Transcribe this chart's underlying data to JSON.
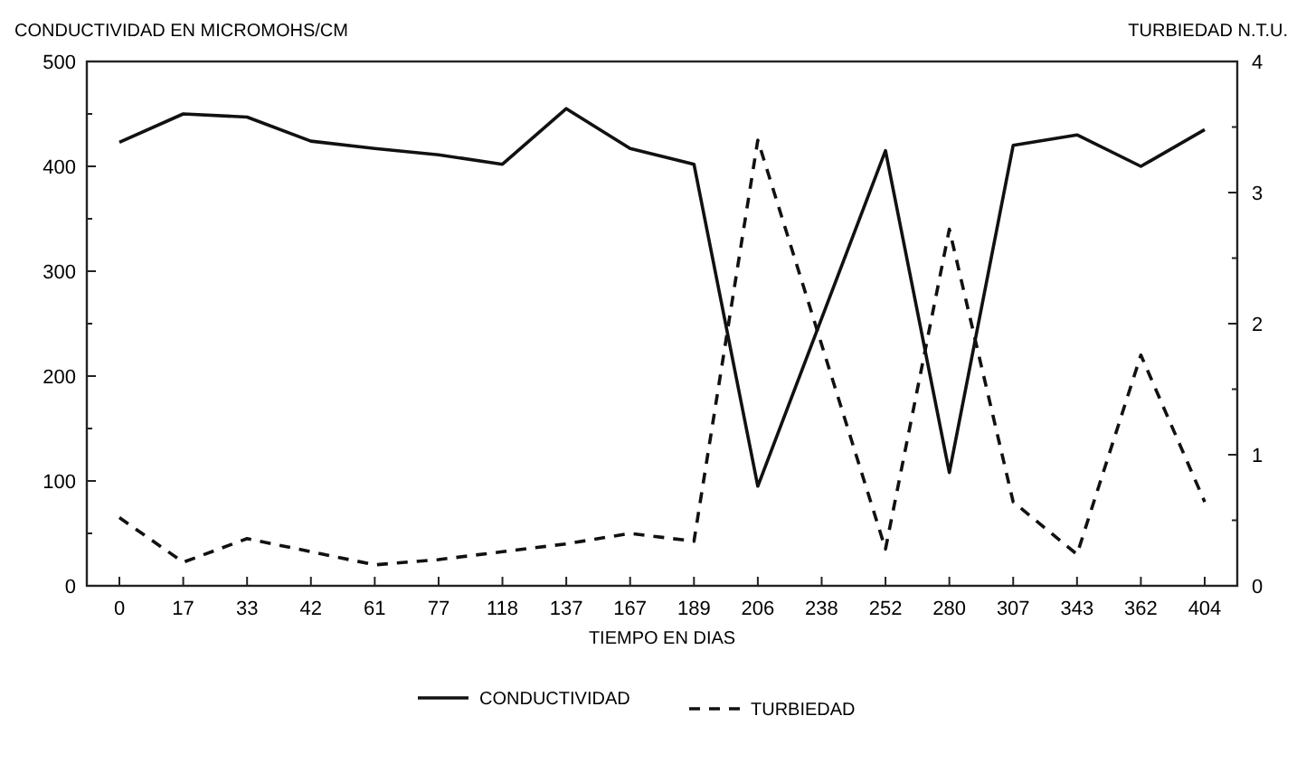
{
  "chart_data": {
    "type": "line",
    "ylabel": "CONDUCTIVIDAD EN MICROMOHS/CM",
    "y2label": "TURBIEDAD N.T.U.",
    "xlabel": "TIEMPO EN DIAS",
    "categories": [
      "0",
      "17",
      "33",
      "42",
      "61",
      "77",
      "118",
      "137",
      "167",
      "189",
      "206",
      "238",
      "252",
      "280",
      "307",
      "343",
      "362",
      "404"
    ],
    "series": [
      {
        "name": "CONDUCTIVIDAD",
        "color": "#111111",
        "line_style": "solid",
        "values": [
          423,
          450,
          447,
          424,
          417,
          411,
          402,
          455,
          417,
          402,
          95,
          255,
          415,
          108,
          420,
          430,
          400,
          435
        ]
      },
      {
        "name": "TURBIEDAD",
        "color": "#111111",
        "line_style": "dashed",
        "axis": "y2",
        "values": [
          0.52,
          0.18,
          0.36,
          0.26,
          0.16,
          0.2,
          0.26,
          0.32,
          0.4,
          0.34,
          3.4,
          1.84,
          0.28,
          2.72,
          0.64,
          0.24,
          1.76,
          0.64
        ]
      }
    ],
    "ylim": [
      0,
      500
    ],
    "yticks": [
      0,
      {
        "value": 50,
        "label": null
      },
      100,
      {
        "value": 150,
        "label": null
      },
      200,
      {
        "value": 250,
        "label": null
      },
      300,
      {
        "value": 350,
        "label": null
      },
      400,
      {
        "value": 450,
        "label": null
      },
      500
    ],
    "y2lim": [
      0,
      4
    ],
    "y2ticks": [
      0,
      {
        "value": 0.5,
        "label": null
      },
      1,
      {
        "value": 1.5,
        "label": null
      },
      2,
      {
        "value": 2.5,
        "label": null
      },
      3,
      {
        "value": 3.5,
        "label": null
      },
      4
    ],
    "grid": false,
    "legend": "bottom"
  }
}
